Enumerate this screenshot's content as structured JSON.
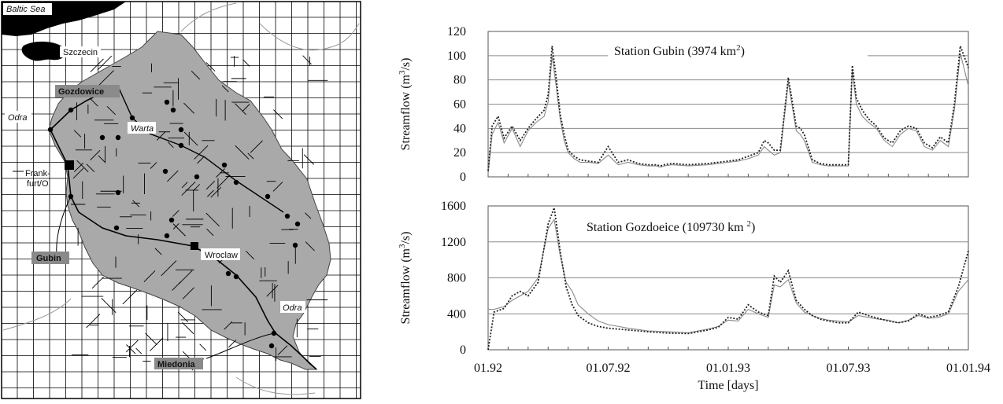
{
  "map": {
    "sea_label": "Baltic Sea",
    "labels": {
      "szczecin": "Szczecin",
      "gozdowice": "Gozdowice",
      "odra_north": "Odra",
      "warta": "Warta",
      "frankfurt_1": "Frank-",
      "frankfurt_2": "furt/O.",
      "gubin": "Gubin",
      "wroclaw": "Wroclaw",
      "odra_south": "Odra",
      "miedonia": "Miedonia"
    }
  },
  "chart_data": [
    {
      "type": "line",
      "title": "Station Gubin (3974 km²)",
      "title_parts": [
        "Station Gubin (3974 km",
        "2",
        ")"
      ],
      "ylabel_parts": [
        "Streamflow (m",
        "3",
        "/s)"
      ],
      "xlabel": "",
      "ylim": [
        0,
        120
      ],
      "yticks": [
        "0",
        "20",
        "40",
        "60",
        "80",
        "100",
        "120"
      ],
      "grid": "horizontal",
      "x_range": [
        0,
        24
      ],
      "series": [
        {
          "style": "solid",
          "color": "#8a8a8a",
          "x": [
            0,
            0.2,
            0.5,
            0.8,
            1.2,
            1.6,
            2.0,
            2.4,
            2.8,
            3.0,
            3.2,
            3.4,
            3.6,
            3.8,
            4.0,
            4.3,
            4.6,
            5.0,
            5.5,
            6.0,
            6.5,
            7.0,
            7.5,
            8.0,
            8.4,
            8.6,
            8.8,
            9.2,
            10.0,
            11.0,
            12.0,
            12.5,
            13.0,
            13.5,
            13.8,
            14.0,
            14.3,
            14.6,
            15.0,
            15.4,
            15.6,
            15.8,
            16.2,
            16.6,
            17.0,
            17.5,
            18.0,
            18.2,
            18.4,
            18.7,
            19.0,
            19.4,
            19.8,
            20.2,
            20.6,
            21.0,
            21.4,
            21.8,
            22.2,
            22.6,
            23.0,
            23.3,
            23.6,
            24.0
          ],
          "y": [
            2,
            35,
            45,
            28,
            40,
            25,
            38,
            45,
            50,
            62,
            100,
            75,
            48,
            30,
            20,
            15,
            12,
            12,
            11,
            18,
            10,
            12,
            10,
            9,
            9,
            8,
            9,
            10,
            9,
            10,
            12,
            13,
            15,
            18,
            25,
            22,
            18,
            20,
            78,
            38,
            35,
            30,
            12,
            10,
            9,
            9,
            9,
            88,
            60,
            50,
            45,
            40,
            30,
            25,
            35,
            40,
            38,
            25,
            22,
            30,
            25,
            55,
            102,
            75
          ]
        },
        {
          "style": "dotted",
          "color": "#222222",
          "x": [
            0,
            0.2,
            0.5,
            0.8,
            1.2,
            1.6,
            2.0,
            2.4,
            2.8,
            3.0,
            3.2,
            3.4,
            3.6,
            3.8,
            4.0,
            4.3,
            4.6,
            5.0,
            5.5,
            6.0,
            6.5,
            7.0,
            7.5,
            8.0,
            8.4,
            8.6,
            8.8,
            9.2,
            10.0,
            11.0,
            12.0,
            12.5,
            13.0,
            13.5,
            13.8,
            14.0,
            14.3,
            14.6,
            15.0,
            15.4,
            15.6,
            15.8,
            16.2,
            16.6,
            17.0,
            17.5,
            18.0,
            18.2,
            18.4,
            18.7,
            19.0,
            19.4,
            19.8,
            20.2,
            20.6,
            21.0,
            21.4,
            21.8,
            22.2,
            22.6,
            23.0,
            23.3,
            23.6,
            24.0
          ],
          "y": [
            5,
            42,
            50,
            32,
            42,
            30,
            40,
            48,
            55,
            68,
            108,
            82,
            52,
            35,
            22,
            17,
            14,
            13,
            12,
            25,
            12,
            14,
            11,
            10,
            10,
            9,
            10,
            11,
            10,
            11,
            13,
            14,
            17,
            20,
            30,
            28,
            22,
            22,
            82,
            42,
            40,
            35,
            14,
            11,
            10,
            10,
            10,
            92,
            65,
            55,
            48,
            42,
            32,
            28,
            38,
            42,
            40,
            28,
            24,
            33,
            28,
            60,
            108,
            90
          ]
        }
      ]
    },
    {
      "type": "line",
      "title": "Station Gozdoeice (109730 km²)",
      "title_parts": [
        "Station Gozdoeice (109730 km ",
        "2",
        ")"
      ],
      "ylabel_parts": [
        "Streamflow (m",
        "3",
        "/s)"
      ],
      "xlabel": "Time [days]",
      "ylim": [
        0,
        1600
      ],
      "yticks": [
        "0",
        "400",
        "800",
        "1200",
        "1600"
      ],
      "xticks": [
        "01.92",
        "01.07.92",
        "01.01.93",
        "01.07.93",
        "01.01.94"
      ],
      "grid": "horizontal",
      "x_range": [
        0,
        24
      ],
      "series": [
        {
          "style": "solid",
          "color": "#8a8a8a",
          "x": [
            0,
            0.3,
            0.8,
            1.2,
            1.6,
            2.0,
            2.5,
            3.0,
            3.3,
            3.6,
            3.9,
            4.2,
            4.5,
            5.0,
            5.5,
            6.0,
            7.0,
            8.0,
            9.0,
            10.0,
            11.0,
            11.5,
            12.0,
            12.5,
            13.0,
            13.5,
            14.0,
            14.3,
            14.6,
            15.0,
            15.4,
            15.8,
            16.2,
            16.6,
            17.0,
            17.5,
            18.0,
            18.5,
            19.0,
            19.5,
            20.0,
            20.5,
            21.0,
            21.5,
            22.0,
            22.5,
            23.0,
            23.5,
            24.0
          ],
          "y": [
            450,
            450,
            480,
            550,
            600,
            650,
            800,
            1350,
            1450,
            1050,
            750,
            650,
            500,
            400,
            320,
            280,
            240,
            210,
            200,
            190,
            230,
            260,
            330,
            320,
            450,
            400,
            360,
            720,
            700,
            780,
            520,
            420,
            380,
            350,
            330,
            320,
            310,
            380,
            360,
            340,
            330,
            300,
            330,
            380,
            350,
            360,
            400,
            650,
            780
          ]
        },
        {
          "style": "dotted",
          "color": "#222222",
          "x": [
            0,
            0.3,
            0.8,
            1.2,
            1.6,
            2.0,
            2.5,
            3.0,
            3.3,
            3.6,
            3.9,
            4.2,
            4.5,
            5.0,
            5.5,
            6.0,
            7.0,
            8.0,
            9.0,
            10.0,
            11.0,
            11.5,
            12.0,
            12.5,
            13.0,
            13.5,
            14.0,
            14.3,
            14.6,
            15.0,
            15.4,
            15.8,
            16.2,
            16.6,
            17.0,
            17.5,
            18.0,
            18.5,
            19.0,
            19.5,
            20.0,
            20.5,
            21.0,
            21.5,
            22.0,
            22.5,
            23.0,
            23.5,
            24.0
          ],
          "y": [
            0,
            420,
            460,
            600,
            650,
            600,
            750,
            1400,
            1580,
            1100,
            700,
            500,
            380,
            300,
            260,
            240,
            220,
            200,
            185,
            180,
            220,
            250,
            360,
            340,
            500,
            420,
            380,
            820,
            750,
            880,
            550,
            450,
            380,
            340,
            320,
            300,
            300,
            420,
            380,
            350,
            320,
            300,
            320,
            400,
            360,
            380,
            420,
            700,
            1100
          ]
        }
      ]
    }
  ]
}
